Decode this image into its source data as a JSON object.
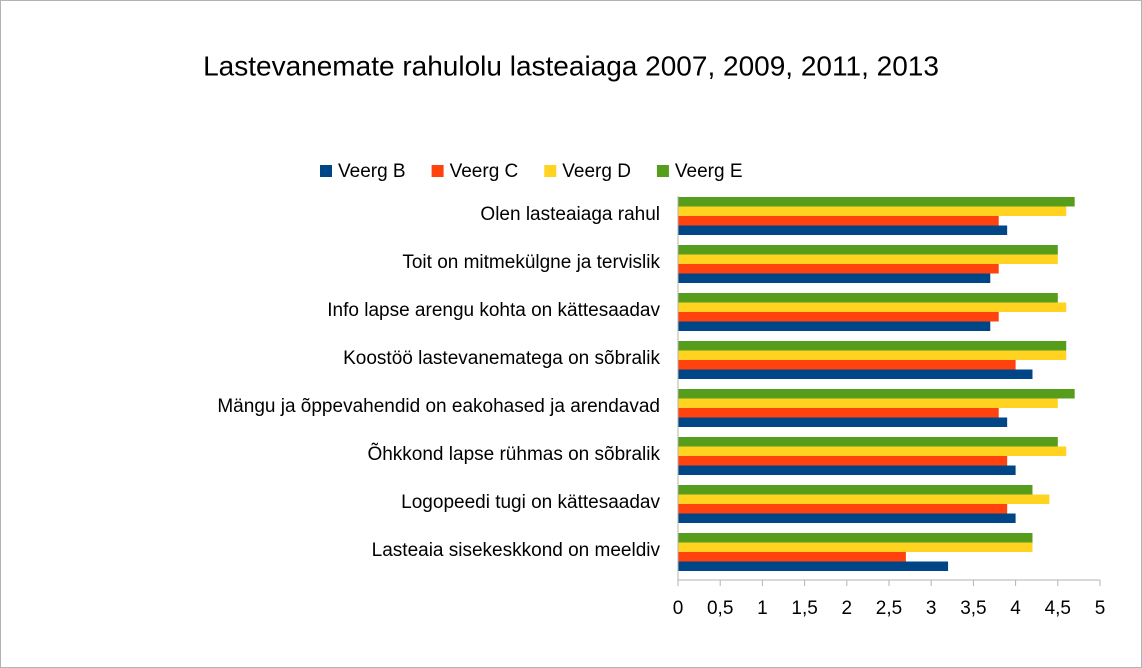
{
  "chart_data": {
    "type": "bar",
    "orientation": "horizontal",
    "title": "Lastevanemate rahulolu lasteaiaga 2007, 2009, 2011, 2013",
    "categories": [
      "Olen lasteaiaga rahul",
      "Toit on mitmekülgne ja tervislik",
      "Info lapse arengu kohta on kättesaadav",
      "Koostöö lastevanematega on sõbralik",
      "Mängu ja õppevahendid on eakohased ja arendavad",
      "Õhkkond lapse rühmas on sõbralik",
      "Logopeedi tugi on kättesaadav",
      "Lasteaia sisekeskkond on meeldiv"
    ],
    "series": [
      {
        "name": "Veerg B",
        "color": "#004586",
        "values": [
          3.9,
          3.7,
          3.7,
          4.2,
          3.9,
          4.0,
          4.0,
          3.2
        ]
      },
      {
        "name": "Veerg C",
        "color": "#ff420e",
        "values": [
          3.8,
          3.8,
          3.8,
          4.0,
          3.8,
          3.9,
          3.9,
          2.7
        ]
      },
      {
        "name": "Veerg D",
        "color": "#ffd320",
        "values": [
          4.6,
          4.5,
          4.6,
          4.6,
          4.5,
          4.6,
          4.4,
          4.2
        ]
      },
      {
        "name": "Veerg E",
        "color": "#579d1c",
        "values": [
          4.7,
          4.5,
          4.5,
          4.6,
          4.7,
          4.5,
          4.2,
          4.2
        ]
      }
    ],
    "xlim": [
      0,
      5
    ],
    "xticks": [
      0,
      {
        "value": 0.5,
        "label": "0,5"
      },
      1,
      {
        "value": 1.5,
        "label": "1,5"
      },
      2,
      {
        "value": 2.5,
        "label": "2,5"
      },
      3,
      {
        "value": 3.5,
        "label": "3,5"
      },
      4,
      {
        "value": 4.5,
        "label": "4,5"
      },
      5
    ],
    "legend": "top",
    "grid": false
  }
}
